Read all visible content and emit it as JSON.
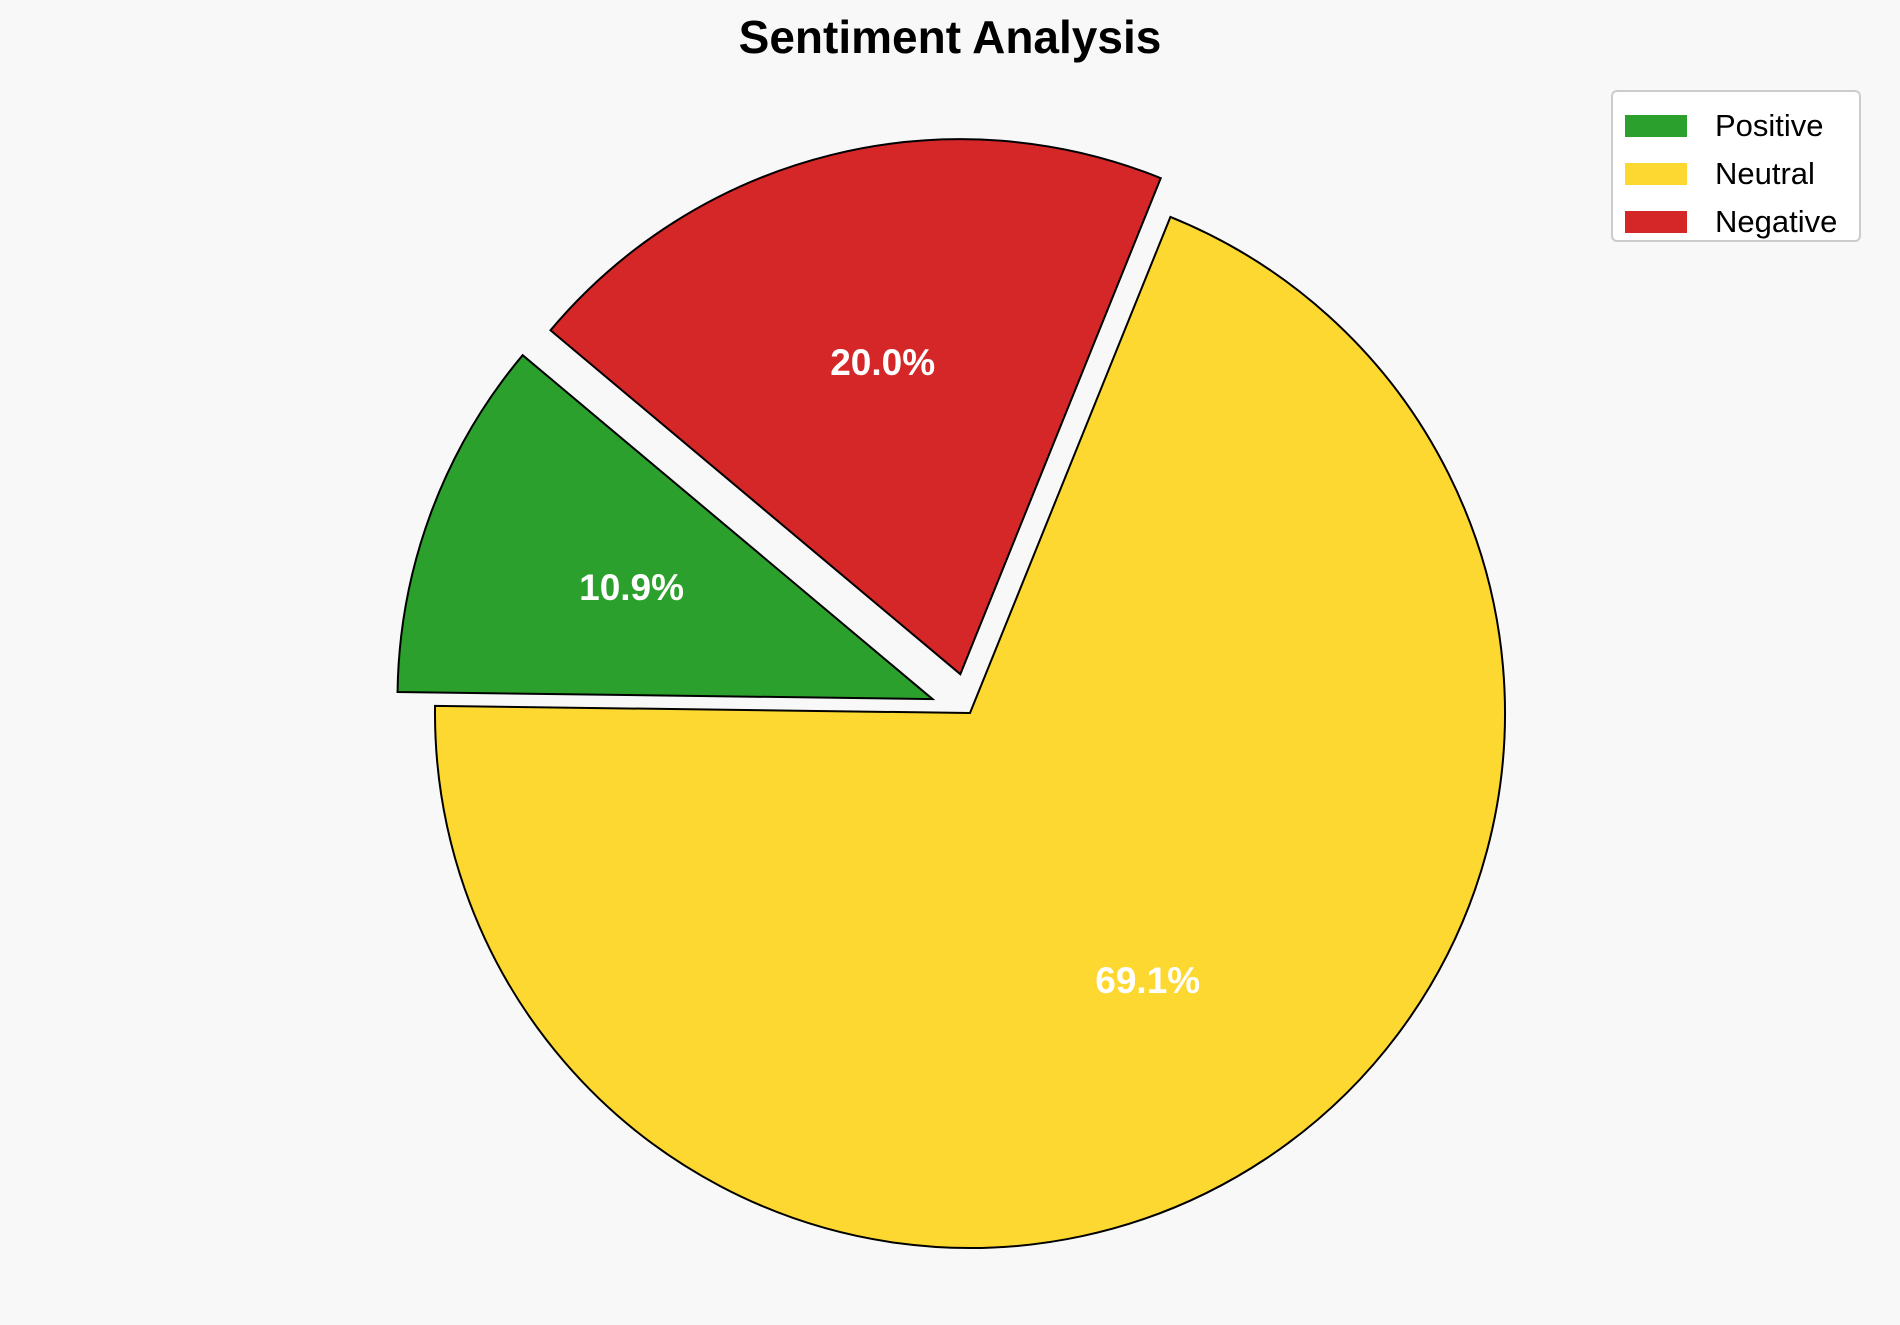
{
  "chart_data": {
    "type": "pie",
    "title": "Sentiment Analysis",
    "slices": [
      {
        "name": "Positive",
        "value": 10.9,
        "label": "10.9%",
        "color": "#2ca02c"
      },
      {
        "name": "Neutral",
        "value": 69.1,
        "label": "69.1%",
        "color": "#fdd831"
      },
      {
        "name": "Negative",
        "value": 20.0,
        "label": "20.0%",
        "color": "#d62728"
      }
    ],
    "start_angle_deg": 140,
    "exploded": [
      "Positive",
      "Negative"
    ],
    "legend_position": "top-right",
    "edge_color": "#000000"
  }
}
